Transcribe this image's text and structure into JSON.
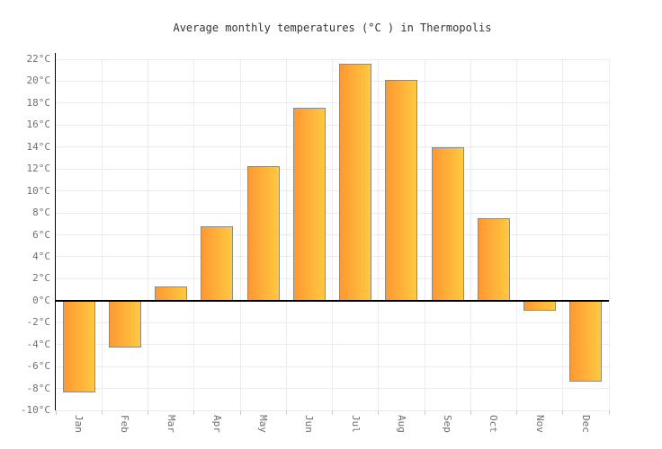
{
  "title": "Average monthly temperatures (°C ) in Thermopolis",
  "chart_data": {
    "type": "bar",
    "title": "Average monthly temperatures (°C ) in Thermopolis",
    "categories": [
      "Jan",
      "Feb",
      "Mar",
      "Apr",
      "May",
      "Jun",
      "Jul",
      "Aug",
      "Sep",
      "Oct",
      "Nov",
      "Dec"
    ],
    "values": [
      -8.4,
      -4.3,
      1.3,
      6.8,
      12.3,
      17.6,
      21.6,
      20.1,
      14.0,
      7.5,
      -0.9,
      -7.4
    ],
    "series_name": "Average monthly temperature (°C)",
    "xlabel": "",
    "ylabel": "",
    "ylim": [
      -10,
      22
    ],
    "ytick_step": 2,
    "ytick_suffix": "°C",
    "grid": true,
    "legend": false,
    "zero_baseline": true
  },
  "colors": {
    "background": "#ffffff",
    "bar_gradient_left": "#ff9832",
    "bar_gradient_right": "#ffc940",
    "bar_border": "#8b8b8b",
    "grid": "#ececec",
    "tick": "#cccccc",
    "axis": "#000000",
    "zero_line": "#000000",
    "label": "#707070",
    "title": "#333333"
  }
}
